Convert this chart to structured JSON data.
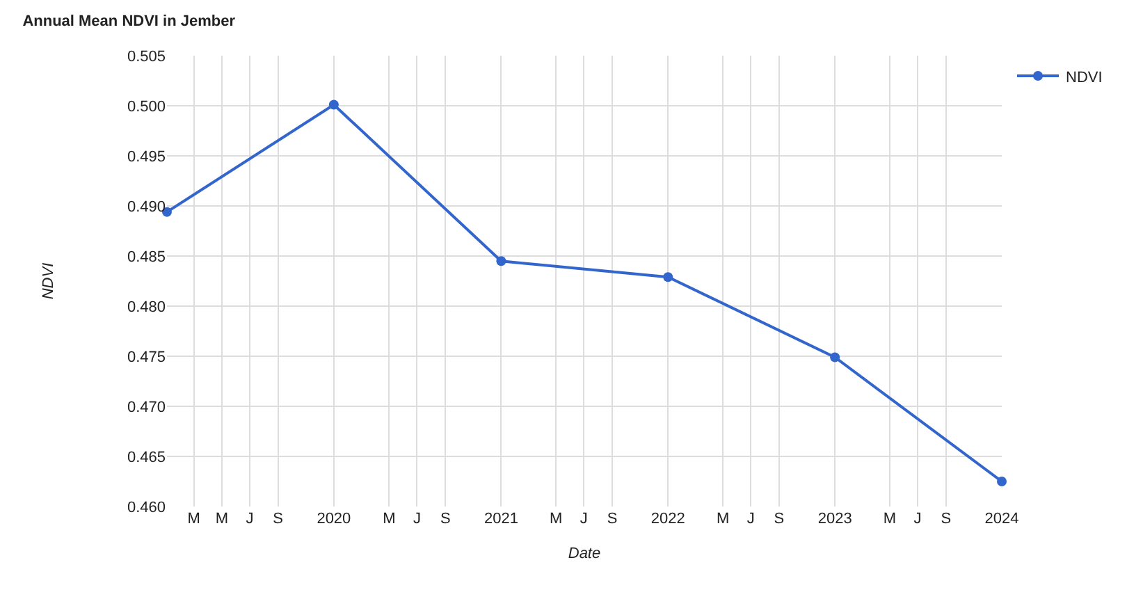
{
  "chart_data": {
    "type": "line",
    "title": "Annual Mean NDVI in Jember",
    "xlabel": "Date",
    "ylabel": "NDVI",
    "x": [
      "2019-01-01",
      "2020-01-01",
      "2021-01-01",
      "2022-01-01",
      "2023-01-01",
      "2024-01-01"
    ],
    "series": [
      {
        "name": "NDVI",
        "color": "#3366cc",
        "values": [
          0.4894,
          0.5001,
          0.4845,
          0.4829,
          0.4749,
          0.4625
        ]
      }
    ],
    "xlim": [
      "2019-01-01",
      "2024-01-01"
    ],
    "xticks": [
      {
        "value": "2019-03-01",
        "label": "M"
      },
      {
        "value": "2019-05-01",
        "label": "M"
      },
      {
        "value": "2019-07-01",
        "label": "J"
      },
      {
        "value": "2019-09-01",
        "label": "S"
      },
      {
        "value": "2020-01-01",
        "label": "2020"
      },
      {
        "value": "2020-05-01",
        "label": "M"
      },
      {
        "value": "2020-07-01",
        "label": "J"
      },
      {
        "value": "2020-09-01",
        "label": "S"
      },
      {
        "value": "2021-01-01",
        "label": "2021"
      },
      {
        "value": "2021-05-01",
        "label": "M"
      },
      {
        "value": "2021-07-01",
        "label": "J"
      },
      {
        "value": "2021-09-01",
        "label": "S"
      },
      {
        "value": "2022-01-01",
        "label": "2022"
      },
      {
        "value": "2022-05-01",
        "label": "M"
      },
      {
        "value": "2022-07-01",
        "label": "J"
      },
      {
        "value": "2022-09-01",
        "label": "S"
      },
      {
        "value": "2023-01-01",
        "label": "2023"
      },
      {
        "value": "2023-05-01",
        "label": "M"
      },
      {
        "value": "2023-07-01",
        "label": "J"
      },
      {
        "value": "2023-09-01",
        "label": "S"
      },
      {
        "value": "2024-01-01",
        "label": "2024"
      }
    ],
    "ylim": [
      0.46,
      0.505
    ],
    "yticks": [
      {
        "value": 0.46,
        "label": "0.460"
      },
      {
        "value": 0.465,
        "label": "0.465"
      },
      {
        "value": 0.47,
        "label": "0.470"
      },
      {
        "value": 0.475,
        "label": "0.475"
      },
      {
        "value": 0.48,
        "label": "0.480"
      },
      {
        "value": 0.485,
        "label": "0.485"
      },
      {
        "value": 0.49,
        "label": "0.490"
      },
      {
        "value": 0.495,
        "label": "0.495"
      },
      {
        "value": 0.5,
        "label": "0.500"
      },
      {
        "value": 0.505,
        "label": "0.505"
      }
    ],
    "grid": true,
    "legend": "top right",
    "marker": "circle",
    "line_style": "solid"
  }
}
